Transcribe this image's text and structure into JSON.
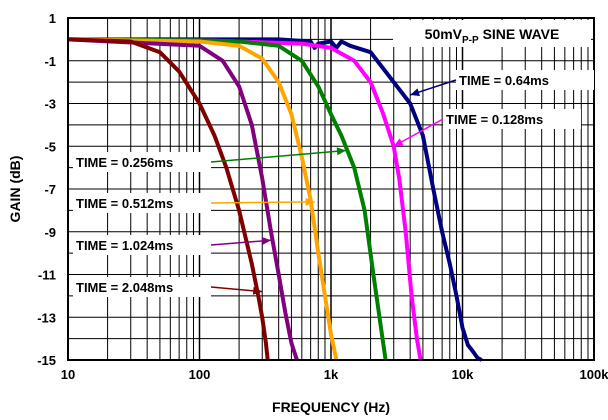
{
  "chart_data": {
    "type": "line",
    "xlabel": "FREQUENCY (Hz)",
    "ylabel": "GAIN (dB)",
    "xscale": "log",
    "xlim": [
      10,
      100000
    ],
    "ylim": [
      -15,
      1
    ],
    "grid": true,
    "x_ticks": [
      {
        "value": 10,
        "label": "10"
      },
      {
        "value": 100,
        "label": "100"
      },
      {
        "value": 1000,
        "label": "1k"
      },
      {
        "value": 10000,
        "label": "10k"
      },
      {
        "value": 100000,
        "label": "100k"
      }
    ],
    "y_ticks": [
      {
        "value": 1,
        "label": "1"
      },
      {
        "value": -1,
        "label": "-1"
      },
      {
        "value": -3,
        "label": "-3"
      },
      {
        "value": -5,
        "label": "-5"
      },
      {
        "value": -7,
        "label": "-7"
      },
      {
        "value": -9,
        "label": "-9"
      },
      {
        "value": -11,
        "label": "-11"
      },
      {
        "value": -13,
        "label": "-13"
      },
      {
        "value": -15,
        "label": "-15"
      }
    ],
    "annotation_box": {
      "main": "50mV",
      "subscript": "P-P",
      "suffix": " SINE WAVE"
    },
    "series": [
      {
        "name": "TIME = 0.64ms",
        "color": "#000080",
        "x": [
          10,
          100,
          400,
          700,
          750,
          800,
          1000,
          1100,
          1200,
          1400,
          2000,
          3000,
          4000,
          5000,
          6000,
          7000,
          8000,
          9000,
          10000,
          11000,
          12000,
          13000,
          14000
        ],
        "y": [
          0,
          0,
          0,
          -0.1,
          -0.4,
          -0.2,
          -0.1,
          -0.4,
          -0.1,
          -0.3,
          -0.6,
          -2.0,
          -3.0,
          -4.5,
          -7.0,
          -9.0,
          -10.5,
          -12.0,
          -13.5,
          -14.3,
          -14.6,
          -14.9,
          -15
        ]
      },
      {
        "name": "TIME = 0.128ms",
        "color": "#ff00ff",
        "x": [
          10,
          100,
          200,
          600,
          1000,
          1500,
          2000,
          2500,
          3000,
          3300,
          3700,
          4100,
          4500,
          4800
        ],
        "y": [
          0,
          -0.05,
          -0.1,
          -0.2,
          -0.4,
          -1.0,
          -2.0,
          -3.5,
          -5.0,
          -6.5,
          -9.0,
          -12.0,
          -14.0,
          -15
        ]
      },
      {
        "name": "TIME = 0.256ms",
        "color": "#008000",
        "x": [
          10,
          100,
          200,
          400,
          600,
          800,
          1000,
          1200,
          1500,
          1800,
          2100,
          2400,
          2600
        ],
        "y": [
          0,
          -0.05,
          -0.1,
          -0.3,
          -1.0,
          -2.2,
          -3.5,
          -4.5,
          -6.0,
          -8.0,
          -11.0,
          -13.5,
          -15
        ]
      },
      {
        "name": "TIME = 0.512ms",
        "color": "#ffa500",
        "x": [
          10,
          100,
          200,
          300,
          400,
          500,
          600,
          700,
          800,
          900,
          1000,
          1100
        ],
        "y": [
          0,
          -0.1,
          -0.3,
          -0.9,
          -2.0,
          -3.5,
          -5.5,
          -7.5,
          -10.0,
          -12.0,
          -13.8,
          -15
        ]
      },
      {
        "name": "TIME = 1.024ms",
        "color": "#800080",
        "x": [
          10,
          100,
          150,
          200,
          250,
          300,
          350,
          400,
          450,
          500,
          550
        ],
        "y": [
          0,
          -0.3,
          -1.0,
          -2.2,
          -4.0,
          -6.5,
          -9.0,
          -11.0,
          -12.8,
          -14.2,
          -15
        ]
      },
      {
        "name": "TIME = 2.048ms",
        "color": "#800000",
        "x": [
          10,
          30,
          50,
          70,
          100,
          130,
          160,
          200,
          250,
          280,
          300,
          320,
          330
        ],
        "y": [
          0,
          -0.1,
          -0.6,
          -1.5,
          -3.0,
          -4.5,
          -6.0,
          -8.0,
          -10.5,
          -12.0,
          -13.0,
          -14.2,
          -15
        ]
      }
    ],
    "labels": [
      {
        "text": "TIME = 0.64ms",
        "series": "TIME = 0.64ms",
        "arrow_to": {
          "x": 4000,
          "y": -2.6
        },
        "side": "right"
      },
      {
        "text": "TIME = 0.128ms",
        "series": "TIME = 0.128ms",
        "arrow_to": {
          "x": 3000,
          "y": -5.0
        },
        "side": "right"
      },
      {
        "text": "TIME = 0.256ms",
        "series": "TIME = 0.256ms",
        "arrow_to": {
          "x": 1300,
          "y": -5.2
        },
        "side": "left"
      },
      {
        "text": "TIME = 0.512ms",
        "series": "TIME = 0.512ms",
        "arrow_to": {
          "x": 750,
          "y": -7.6
        },
        "side": "left"
      },
      {
        "text": "TIME = 1.024ms",
        "series": "TIME = 1.024ms",
        "arrow_to": {
          "x": 350,
          "y": -9.4
        },
        "side": "left"
      },
      {
        "text": "TIME = 2.048ms",
        "series": "TIME = 2.048ms",
        "arrow_to": {
          "x": 300,
          "y": -11.8
        },
        "side": "left"
      }
    ]
  }
}
